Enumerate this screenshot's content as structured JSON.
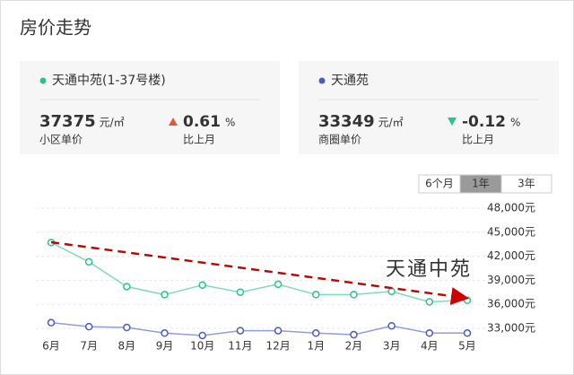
{
  "title": "房价走势",
  "cards": [
    {
      "price": 37375,
      "unit": "元/㎡",
      "price_label": "小区单价",
      "change": 0.61,
      "change_unit": "%",
      "change_label": "比上月",
      "direction": "up"
    },
    {
      "price": 33349,
      "unit": "元/㎡",
      "price_label": "商圈单价",
      "change": -0.12,
      "change_unit": "%",
      "change_label": "比上月",
      "direction": "down"
    }
  ],
  "tabs": {
    "items": [
      "6个月",
      "1年",
      "3年"
    ],
    "active": 1
  },
  "chart_data": {
    "type": "line",
    "annotation": "天通中苑",
    "categories": [
      "6月",
      "7月",
      "8月",
      "9月",
      "10月",
      "11月",
      "12月",
      "1月",
      "2月",
      "3月",
      "4月",
      "5月"
    ],
    "series": [
      {
        "name": "天通中苑(1-37号楼)",
        "color": "#2bc28e",
        "values": [
          43700,
          41300,
          38200,
          37200,
          38400,
          37500,
          38500,
          37200,
          37200,
          37600,
          36300,
          36500
        ]
      },
      {
        "name": "天通苑",
        "color": "#4a5bc4",
        "values": [
          33700,
          33200,
          33100,
          32400,
          32100,
          32700,
          32700,
          32400,
          32200,
          33300,
          32400,
          32400
        ]
      }
    ],
    "ylim": [
      30000,
      48000
    ],
    "yticks": [
      {
        "value": 33000,
        "label": "33,000元"
      },
      {
        "value": 36000,
        "label": "36,000元"
      },
      {
        "value": 39000,
        "label": "39,000元"
      },
      {
        "value": 42000,
        "label": "42,000元"
      },
      {
        "value": 45000,
        "label": "45,000元"
      },
      {
        "value": 48000,
        "label": "48,000元"
      }
    ],
    "grid": true
  }
}
